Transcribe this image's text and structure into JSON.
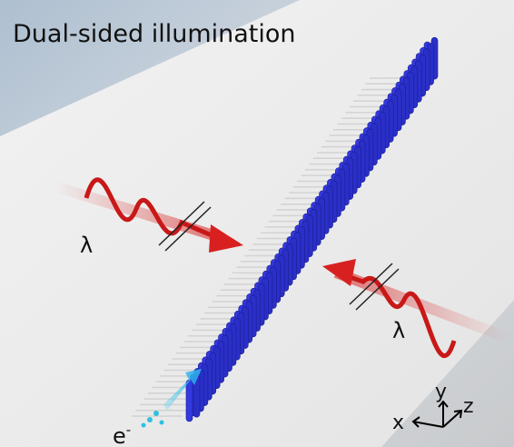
{
  "title": "Dual-sided illumination",
  "wave_labels": [
    "λ",
    "λ"
  ],
  "electron_label": {
    "base": "e",
    "superscript": "-"
  },
  "axes": {
    "x": "x",
    "y": "y",
    "z": "z"
  }
}
